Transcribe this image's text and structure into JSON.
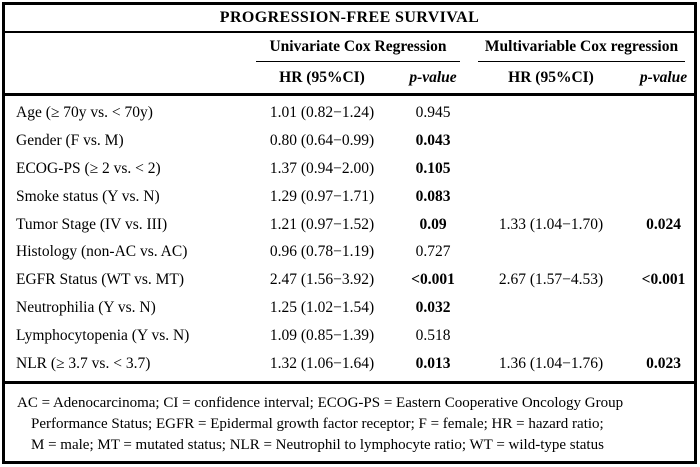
{
  "title": "PROGRESSION-FREE SURVIVAL",
  "header": {
    "group_univariate": "Univariate Cox Regression",
    "group_multivariable": "Multivariable Cox regression",
    "hr_label": "HR (95%CI)",
    "p_label": "p-value"
  },
  "rows": [
    {
      "label": "Age (≥ 70y vs. < 70y)",
      "uni_hr": "1.01 (0.82−1.24)",
      "uni_p": "0.945",
      "uni_p_bold": false,
      "multi_hr": "",
      "multi_p": "",
      "multi_p_bold": false
    },
    {
      "label": "Gender (F vs. M)",
      "uni_hr": "0.80 (0.64−0.99)",
      "uni_p": "0.043",
      "uni_p_bold": true,
      "multi_hr": "",
      "multi_p": "",
      "multi_p_bold": false
    },
    {
      "label": "ECOG-PS (≥ 2 vs. < 2)",
      "uni_hr": "1.37 (0.94−2.00)",
      "uni_p": "0.105",
      "uni_p_bold": true,
      "multi_hr": "",
      "multi_p": "",
      "multi_p_bold": false
    },
    {
      "label": "Smoke status (Y vs. N)",
      "uni_hr": "1.29 (0.97−1.71)",
      "uni_p": "0.083",
      "uni_p_bold": true,
      "multi_hr": "",
      "multi_p": "",
      "multi_p_bold": false
    },
    {
      "label": "Tumor Stage (IV vs. III)",
      "uni_hr": "1.21 (0.97−1.52)",
      "uni_p": "0.09",
      "uni_p_bold": true,
      "multi_hr": "1.33 (1.04−1.70)",
      "multi_p": "0.024",
      "multi_p_bold": true
    },
    {
      "label": "Histology (non-AC vs. AC)",
      "uni_hr": "0.96 (0.78−1.19)",
      "uni_p": "0.727",
      "uni_p_bold": false,
      "multi_hr": "",
      "multi_p": "",
      "multi_p_bold": false
    },
    {
      "label": "EGFR Status (WT vs. MT)",
      "uni_hr": "2.47 (1.56−3.92)",
      "uni_p": "<0.001",
      "uni_p_bold": true,
      "multi_hr": "2.67 (1.57−4.53)",
      "multi_p": "<0.001",
      "multi_p_bold": true
    },
    {
      "label": "Neutrophilia (Y vs. N)",
      "uni_hr": "1.25 (1.02−1.54)",
      "uni_p": "0.032",
      "uni_p_bold": true,
      "multi_hr": "",
      "multi_p": "",
      "multi_p_bold": false
    },
    {
      "label": "Lymphocytopenia (Y vs. N)",
      "uni_hr": "1.09 (0.85−1.39)",
      "uni_p": "0.518",
      "uni_p_bold": false,
      "multi_hr": "",
      "multi_p": "",
      "multi_p_bold": false
    },
    {
      "label": "NLR (≥ 3.7 vs. < 3.7)",
      "uni_hr": "1.32 (1.06−1.64)",
      "uni_p": "0.013",
      "uni_p_bold": true,
      "multi_hr": "1.36 (1.04−1.76)",
      "multi_p": "0.023",
      "multi_p_bold": true
    }
  ],
  "footnote": {
    "lines": [
      "AC = Adenocarcinoma; CI = confidence interval; ECOG-PS = Eastern Cooperative Oncology Group",
      "Performance Status; EGFR = Epidermal growth factor receptor; F = female; HR = hazard ratio;",
      "M = male; MT = mutated status; NLR = Neutrophil to lymphocyte ratio; WT = wild-type status"
    ]
  },
  "colors": {
    "border": "#000000",
    "text": "#000000",
    "background": "#ffffff"
  }
}
